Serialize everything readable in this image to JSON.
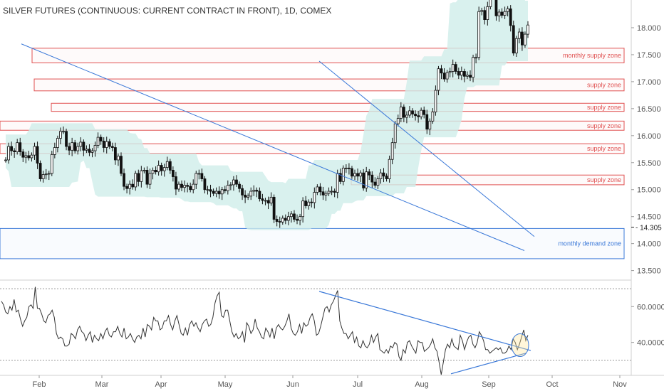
{
  "title": "SILVER FUTURES (CONTINUOUS: CURRENT CONTRACT IN FRONT), 1D, COMEX",
  "chart_data": [
    {
      "type": "candlestick",
      "title": "SILVER FUTURES (CONTINUOUS: CURRENT CONTRACT IN FRONT), 1D, COMEX",
      "x_ticks": [
        "Feb",
        "Mar",
        "Apr",
        "May",
        "Jun",
        "Jul",
        "Aug",
        "Sep",
        "Oct",
        "Nov"
      ],
      "y_ticks": [
        13.5,
        14.0,
        14.5,
        15.0,
        15.5,
        16.0,
        16.5,
        17.0,
        17.5,
        18.0
      ],
      "y_tick_labels": [
        "13.500",
        "14.000",
        "14.500",
        "15.000",
        "15.500",
        "16.000",
        "16.500",
        "17.000",
        "17.500",
        "18.000"
      ],
      "ylim": [
        13.35,
        18.25
      ],
      "last_price": 14.305,
      "last_price_label": "14.305",
      "close_series": [
        {
          "date": "2019-01-02",
          "close": 15.55
        },
        {
          "date": "2019-01-04",
          "close": 15.8
        },
        {
          "date": "2019-01-07",
          "close": 15.72
        },
        {
          "date": "2019-01-08",
          "close": 15.7
        },
        {
          "date": "2019-01-09",
          "close": 15.87
        },
        {
          "date": "2019-01-10",
          "close": 15.7
        },
        {
          "date": "2019-01-11",
          "close": 15.6
        },
        {
          "date": "2019-01-14",
          "close": 15.63
        },
        {
          "date": "2019-01-15",
          "close": 15.59
        },
        {
          "date": "2019-01-16",
          "close": 15.64
        },
        {
          "date": "2019-01-17",
          "close": 15.8
        },
        {
          "date": "2019-01-18",
          "close": 15.49
        },
        {
          "date": "2019-01-21",
          "close": 15.2
        },
        {
          "date": "2019-01-22",
          "close": 15.28
        },
        {
          "date": "2019-01-23",
          "close": 15.29
        },
        {
          "date": "2019-01-24",
          "close": 15.3
        },
        {
          "date": "2019-01-25",
          "close": 15.65
        },
        {
          "date": "2019-01-28",
          "close": 15.78
        },
        {
          "date": "2019-01-29",
          "close": 15.95
        },
        {
          "date": "2019-01-30",
          "close": 16.08
        },
        {
          "date": "2019-01-31",
          "close": 16.08
        },
        {
          "date": "2019-02-01",
          "close": 15.8
        },
        {
          "date": "2019-02-04",
          "close": 15.73
        },
        {
          "date": "2019-02-05",
          "close": 15.87
        },
        {
          "date": "2019-02-06",
          "close": 15.72
        },
        {
          "date": "2019-02-07",
          "close": 15.8
        },
        {
          "date": "2019-02-08",
          "close": 15.88
        },
        {
          "date": "2019-02-11",
          "close": 15.73
        },
        {
          "date": "2019-02-12",
          "close": 15.75
        },
        {
          "date": "2019-02-13",
          "close": 15.69
        },
        {
          "date": "2019-02-14",
          "close": 15.72
        },
        {
          "date": "2019-02-15",
          "close": 15.82
        },
        {
          "date": "2019-02-19",
          "close": 15.97
        },
        {
          "date": "2019-02-20",
          "close": 15.9
        },
        {
          "date": "2019-02-21",
          "close": 15.78
        },
        {
          "date": "2019-02-22",
          "close": 15.89
        },
        {
          "date": "2019-02-25",
          "close": 15.8
        },
        {
          "date": "2019-02-26",
          "close": 15.78
        },
        {
          "date": "2019-02-27",
          "close": 15.55
        },
        {
          "date": "2019-02-28",
          "close": 15.62
        },
        {
          "date": "2019-03-01",
          "close": 15.3
        },
        {
          "date": "2019-03-04",
          "close": 15.06
        },
        {
          "date": "2019-03-05",
          "close": 15.02
        },
        {
          "date": "2019-03-06",
          "close": 15.1
        },
        {
          "date": "2019-03-07",
          "close": 15.05
        },
        {
          "date": "2019-03-08",
          "close": 15.3
        },
        {
          "date": "2019-03-11",
          "close": 15.15
        },
        {
          "date": "2019-03-12",
          "close": 15.35
        },
        {
          "date": "2019-03-13",
          "close": 15.36
        },
        {
          "date": "2019-03-14",
          "close": 15.1
        },
        {
          "date": "2019-03-15",
          "close": 15.3
        },
        {
          "date": "2019-03-18",
          "close": 15.36
        },
        {
          "date": "2019-03-19",
          "close": 15.33
        },
        {
          "date": "2019-03-20",
          "close": 15.45
        },
        {
          "date": "2019-03-21",
          "close": 15.35
        },
        {
          "date": "2019-03-22",
          "close": 15.41
        },
        {
          "date": "2019-03-25",
          "close": 15.52
        },
        {
          "date": "2019-03-26",
          "close": 15.36
        },
        {
          "date": "2019-03-27",
          "close": 15.24
        },
        {
          "date": "2019-03-28",
          "close": 15.01
        },
        {
          "date": "2019-03-29",
          "close": 15.1
        },
        {
          "date": "2019-04-01",
          "close": 15.04
        },
        {
          "date": "2019-04-02",
          "close": 15.08
        },
        {
          "date": "2019-04-03",
          "close": 15.06
        },
        {
          "date": "2019-04-04",
          "close": 15.0
        },
        {
          "date": "2019-04-05",
          "close": 15.1
        },
        {
          "date": "2019-04-08",
          "close": 15.3
        },
        {
          "date": "2019-04-09",
          "close": 15.3
        },
        {
          "date": "2019-04-10",
          "close": 15.2
        },
        {
          "date": "2019-04-11",
          "close": 15.0
        },
        {
          "date": "2019-04-12",
          "close": 15.0
        },
        {
          "date": "2019-04-15",
          "close": 14.97
        },
        {
          "date": "2019-04-16",
          "close": 14.93
        },
        {
          "date": "2019-04-17",
          "close": 14.97
        },
        {
          "date": "2019-04-18",
          "close": 14.92
        },
        {
          "date": "2019-04-22",
          "close": 15.0
        },
        {
          "date": "2019-04-23",
          "close": 14.98
        },
        {
          "date": "2019-04-24",
          "close": 15.08
        },
        {
          "date": "2019-04-25",
          "close": 15.09
        },
        {
          "date": "2019-04-26",
          "close": 15.18
        },
        {
          "date": "2019-04-29",
          "close": 15.1
        },
        {
          "date": "2019-04-30",
          "close": 15.02
        },
        {
          "date": "2019-05-01",
          "close": 14.9
        },
        {
          "date": "2019-05-02",
          "close": 14.86
        },
        {
          "date": "2019-05-03",
          "close": 14.88
        },
        {
          "date": "2019-05-06",
          "close": 14.97
        },
        {
          "date": "2019-05-07",
          "close": 14.99
        },
        {
          "date": "2019-05-08",
          "close": 14.97
        },
        {
          "date": "2019-05-09",
          "close": 14.83
        },
        {
          "date": "2019-05-10",
          "close": 14.8
        },
        {
          "date": "2019-05-13",
          "close": 14.8
        },
        {
          "date": "2019-05-14",
          "close": 14.75
        },
        {
          "date": "2019-05-15",
          "close": 14.86
        },
        {
          "date": "2019-05-16",
          "close": 14.45
        },
        {
          "date": "2019-05-17",
          "close": 14.41
        },
        {
          "date": "2019-05-20",
          "close": 14.4
        },
        {
          "date": "2019-05-21",
          "close": 14.47
        },
        {
          "date": "2019-05-22",
          "close": 14.43
        },
        {
          "date": "2019-05-23",
          "close": 14.5
        },
        {
          "date": "2019-05-24",
          "close": 14.55
        },
        {
          "date": "2019-05-28",
          "close": 14.45
        },
        {
          "date": "2019-05-29",
          "close": 14.43
        },
        {
          "date": "2019-05-30",
          "close": 14.5
        },
        {
          "date": "2019-05-31",
          "close": 14.79
        },
        {
          "date": "2019-06-03",
          "close": 14.7
        },
        {
          "date": "2019-06-04",
          "close": 14.77
        },
        {
          "date": "2019-06-05",
          "close": 14.76
        },
        {
          "date": "2019-06-06",
          "close": 14.95
        },
        {
          "date": "2019-06-07",
          "close": 15.05
        },
        {
          "date": "2019-06-10",
          "close": 14.96
        },
        {
          "date": "2019-06-11",
          "close": 14.9
        },
        {
          "date": "2019-06-12",
          "close": 14.93
        },
        {
          "date": "2019-06-13",
          "close": 14.97
        },
        {
          "date": "2019-06-14",
          "close": 14.97
        },
        {
          "date": "2019-06-17",
          "close": 14.95
        },
        {
          "date": "2019-06-18",
          "close": 15.3
        },
        {
          "date": "2019-06-19",
          "close": 15.15
        },
        {
          "date": "2019-06-20",
          "close": 15.4
        },
        {
          "date": "2019-06-21",
          "close": 15.4
        },
        {
          "date": "2019-06-24",
          "close": 15.39
        },
        {
          "date": "2019-06-25",
          "close": 15.25
        },
        {
          "date": "2019-06-26",
          "close": 15.3
        },
        {
          "date": "2019-06-27",
          "close": 15.25
        },
        {
          "date": "2019-06-28",
          "close": 15.31
        },
        {
          "date": "2019-07-01",
          "close": 15.03
        },
        {
          "date": "2019-07-02",
          "close": 15.33
        },
        {
          "date": "2019-07-03",
          "close": 15.27
        },
        {
          "date": "2019-07-05",
          "close": 15.14
        },
        {
          "date": "2019-07-08",
          "close": 15.08
        },
        {
          "date": "2019-07-09",
          "close": 15.2
        },
        {
          "date": "2019-07-10",
          "close": 15.31
        },
        {
          "date": "2019-07-11",
          "close": 15.25
        },
        {
          "date": "2019-07-12",
          "close": 15.2
        },
        {
          "date": "2019-07-15",
          "close": 15.56
        },
        {
          "date": "2019-07-16",
          "close": 15.87
        },
        {
          "date": "2019-07-17",
          "close": 16.22
        },
        {
          "date": "2019-07-18",
          "close": 16.32
        },
        {
          "date": "2019-07-19",
          "close": 16.53
        },
        {
          "date": "2019-07-22",
          "close": 16.34
        },
        {
          "date": "2019-07-23",
          "close": 16.38
        },
        {
          "date": "2019-07-24",
          "close": 16.46
        },
        {
          "date": "2019-07-25",
          "close": 16.4
        },
        {
          "date": "2019-07-26",
          "close": 16.37
        },
        {
          "date": "2019-07-29",
          "close": 16.35
        },
        {
          "date": "2019-07-30",
          "close": 16.47
        },
        {
          "date": "2019-07-31",
          "close": 16.39
        },
        {
          "date": "2019-08-01",
          "close": 16.12
        },
        {
          "date": "2019-08-02",
          "close": 16.27
        },
        {
          "date": "2019-08-05",
          "close": 16.44
        },
        {
          "date": "2019-08-06",
          "close": 16.84
        },
        {
          "date": "2019-08-07",
          "close": 17.24
        },
        {
          "date": "2019-08-08",
          "close": 17.16
        },
        {
          "date": "2019-08-09",
          "close": 17.05
        },
        {
          "date": "2019-08-12",
          "close": 17.17
        },
        {
          "date": "2019-08-13",
          "close": 17.19
        },
        {
          "date": "2019-08-14",
          "close": 17.32
        },
        {
          "date": "2019-08-15",
          "close": 17.19
        },
        {
          "date": "2019-08-16",
          "close": 17.12
        },
        {
          "date": "2019-08-19",
          "close": 17.19
        },
        {
          "date": "2019-08-20",
          "close": 17.1
        },
        {
          "date": "2019-08-21",
          "close": 17.12
        },
        {
          "date": "2019-08-22",
          "close": 17.08
        },
        {
          "date": "2019-08-23",
          "close": 17.45
        },
        {
          "date": "2019-08-26",
          "close": 17.45
        },
        {
          "date": "2019-08-27",
          "close": 18.3
        },
        {
          "date": "2019-08-28",
          "close": 18.32
        },
        {
          "date": "2019-08-29",
          "close": 18.15
        },
        {
          "date": "2019-08-30",
          "close": 18.39
        },
        {
          "date": "2019-09-03",
          "close": 19.23
        },
        {
          "date": "2019-09-04",
          "close": 19.51
        },
        {
          "date": "2019-09-05",
          "close": 18.22
        },
        {
          "date": "2019-09-06",
          "close": 18.29
        },
        {
          "date": "2019-09-09",
          "close": 18.23
        },
        {
          "date": "2019-09-10",
          "close": 18.3
        },
        {
          "date": "2019-09-11",
          "close": 18.35
        },
        {
          "date": "2019-09-12",
          "close": 18.04
        },
        {
          "date": "2019-09-13",
          "close": 17.53
        },
        {
          "date": "2019-09-16",
          "close": 17.8
        },
        {
          "date": "2019-09-17",
          "close": 17.92
        },
        {
          "date": "2019-09-18",
          "close": 17.68
        },
        {
          "date": "2019-09-19",
          "close": 17.88
        },
        {
          "date": "2019-09-20",
          "close": 18.05
        }
      ]
    },
    {
      "type": "line",
      "y_ticks": [
        40.0,
        60.0
      ],
      "y_tick_labels": [
        "40.0000",
        "60.0000"
      ],
      "dotted_levels": [
        70,
        30
      ],
      "ylim": [
        24,
        74
      ],
      "values": [
        63,
        61,
        57,
        56,
        60,
        58,
        64,
        57,
        58,
        53,
        49,
        52,
        54,
        60,
        61,
        59,
        71,
        59,
        59,
        56,
        52,
        51,
        55,
        56,
        58,
        54,
        45,
        42,
        43,
        42,
        38,
        38,
        39,
        45,
        44,
        42,
        47,
        49,
        46,
        45,
        41,
        44,
        46,
        40,
        44,
        42,
        41,
        45,
        42,
        46,
        48,
        44,
        43,
        46,
        46,
        49,
        45,
        43,
        48,
        42,
        43,
        45,
        42,
        40,
        43,
        44,
        42,
        48,
        43,
        50,
        49,
        47,
        54,
        52,
        52,
        47,
        48,
        52,
        52,
        55,
        50,
        47,
        52,
        55,
        50,
        45,
        44,
        48,
        44,
        50,
        52,
        49,
        51,
        48,
        46,
        50,
        52,
        53,
        49,
        50,
        54,
        62,
        66,
        68,
        55,
        54,
        58,
        58,
        52,
        46,
        43,
        45,
        42,
        43,
        46,
        40,
        51,
        49,
        45,
        47,
        53,
        48,
        46,
        43,
        42,
        48,
        46,
        43,
        48,
        42,
        48,
        50,
        48,
        47,
        49,
        52,
        56,
        48,
        45,
        44,
        46,
        50,
        45,
        51,
        49,
        50,
        54,
        56,
        52,
        44,
        45,
        49,
        54,
        59,
        60,
        57,
        61,
        63,
        66,
        69,
        52,
        48,
        45,
        45,
        42,
        44,
        46,
        40,
        43,
        38,
        37,
        41,
        38,
        37,
        39,
        44,
        40,
        43,
        45,
        36,
        35,
        34,
        36,
        34,
        38,
        37,
        40,
        39,
        32,
        30,
        36,
        34,
        40,
        41,
        38,
        36,
        34,
        41,
        40,
        40,
        35,
        36,
        37,
        39,
        42,
        37,
        35,
        29,
        22,
        29,
        36,
        39,
        37,
        42,
        38,
        37,
        36,
        44,
        41,
        36,
        40,
        43,
        44,
        39,
        37,
        40,
        46,
        44,
        41,
        36,
        36,
        34,
        35,
        36,
        37,
        36,
        37,
        34,
        34,
        35,
        38,
        36,
        42,
        40,
        36,
        39,
        43,
        47,
        41,
        44
      ],
      "annotations": [
        "descending trendline",
        "ascending trendline",
        "breakout circle"
      ]
    }
  ],
  "zones": [
    {
      "label": "monthly supply zone",
      "color": "#e05050",
      "top": 17.62,
      "bottom": 17.35
    },
    {
      "label": "supply zone",
      "color": "#e05050",
      "top": 17.05,
      "bottom": 16.83
    },
    {
      "label": "supply zone",
      "color": "#e05050",
      "top": 16.6,
      "bottom": 16.45
    },
    {
      "label": "supply zone",
      "color": "#e05050",
      "top": 16.27,
      "bottom": 16.1
    },
    {
      "label": "supply zone",
      "color": "#e05050",
      "top": 15.85,
      "bottom": 15.67
    },
    {
      "label": "supply zone",
      "color": "#e05050",
      "top": 15.27,
      "bottom": 15.09
    },
    {
      "label": "monthly demand zone",
      "color": "#3a78d8",
      "top": 14.28,
      "bottom": 13.72
    }
  ]
}
